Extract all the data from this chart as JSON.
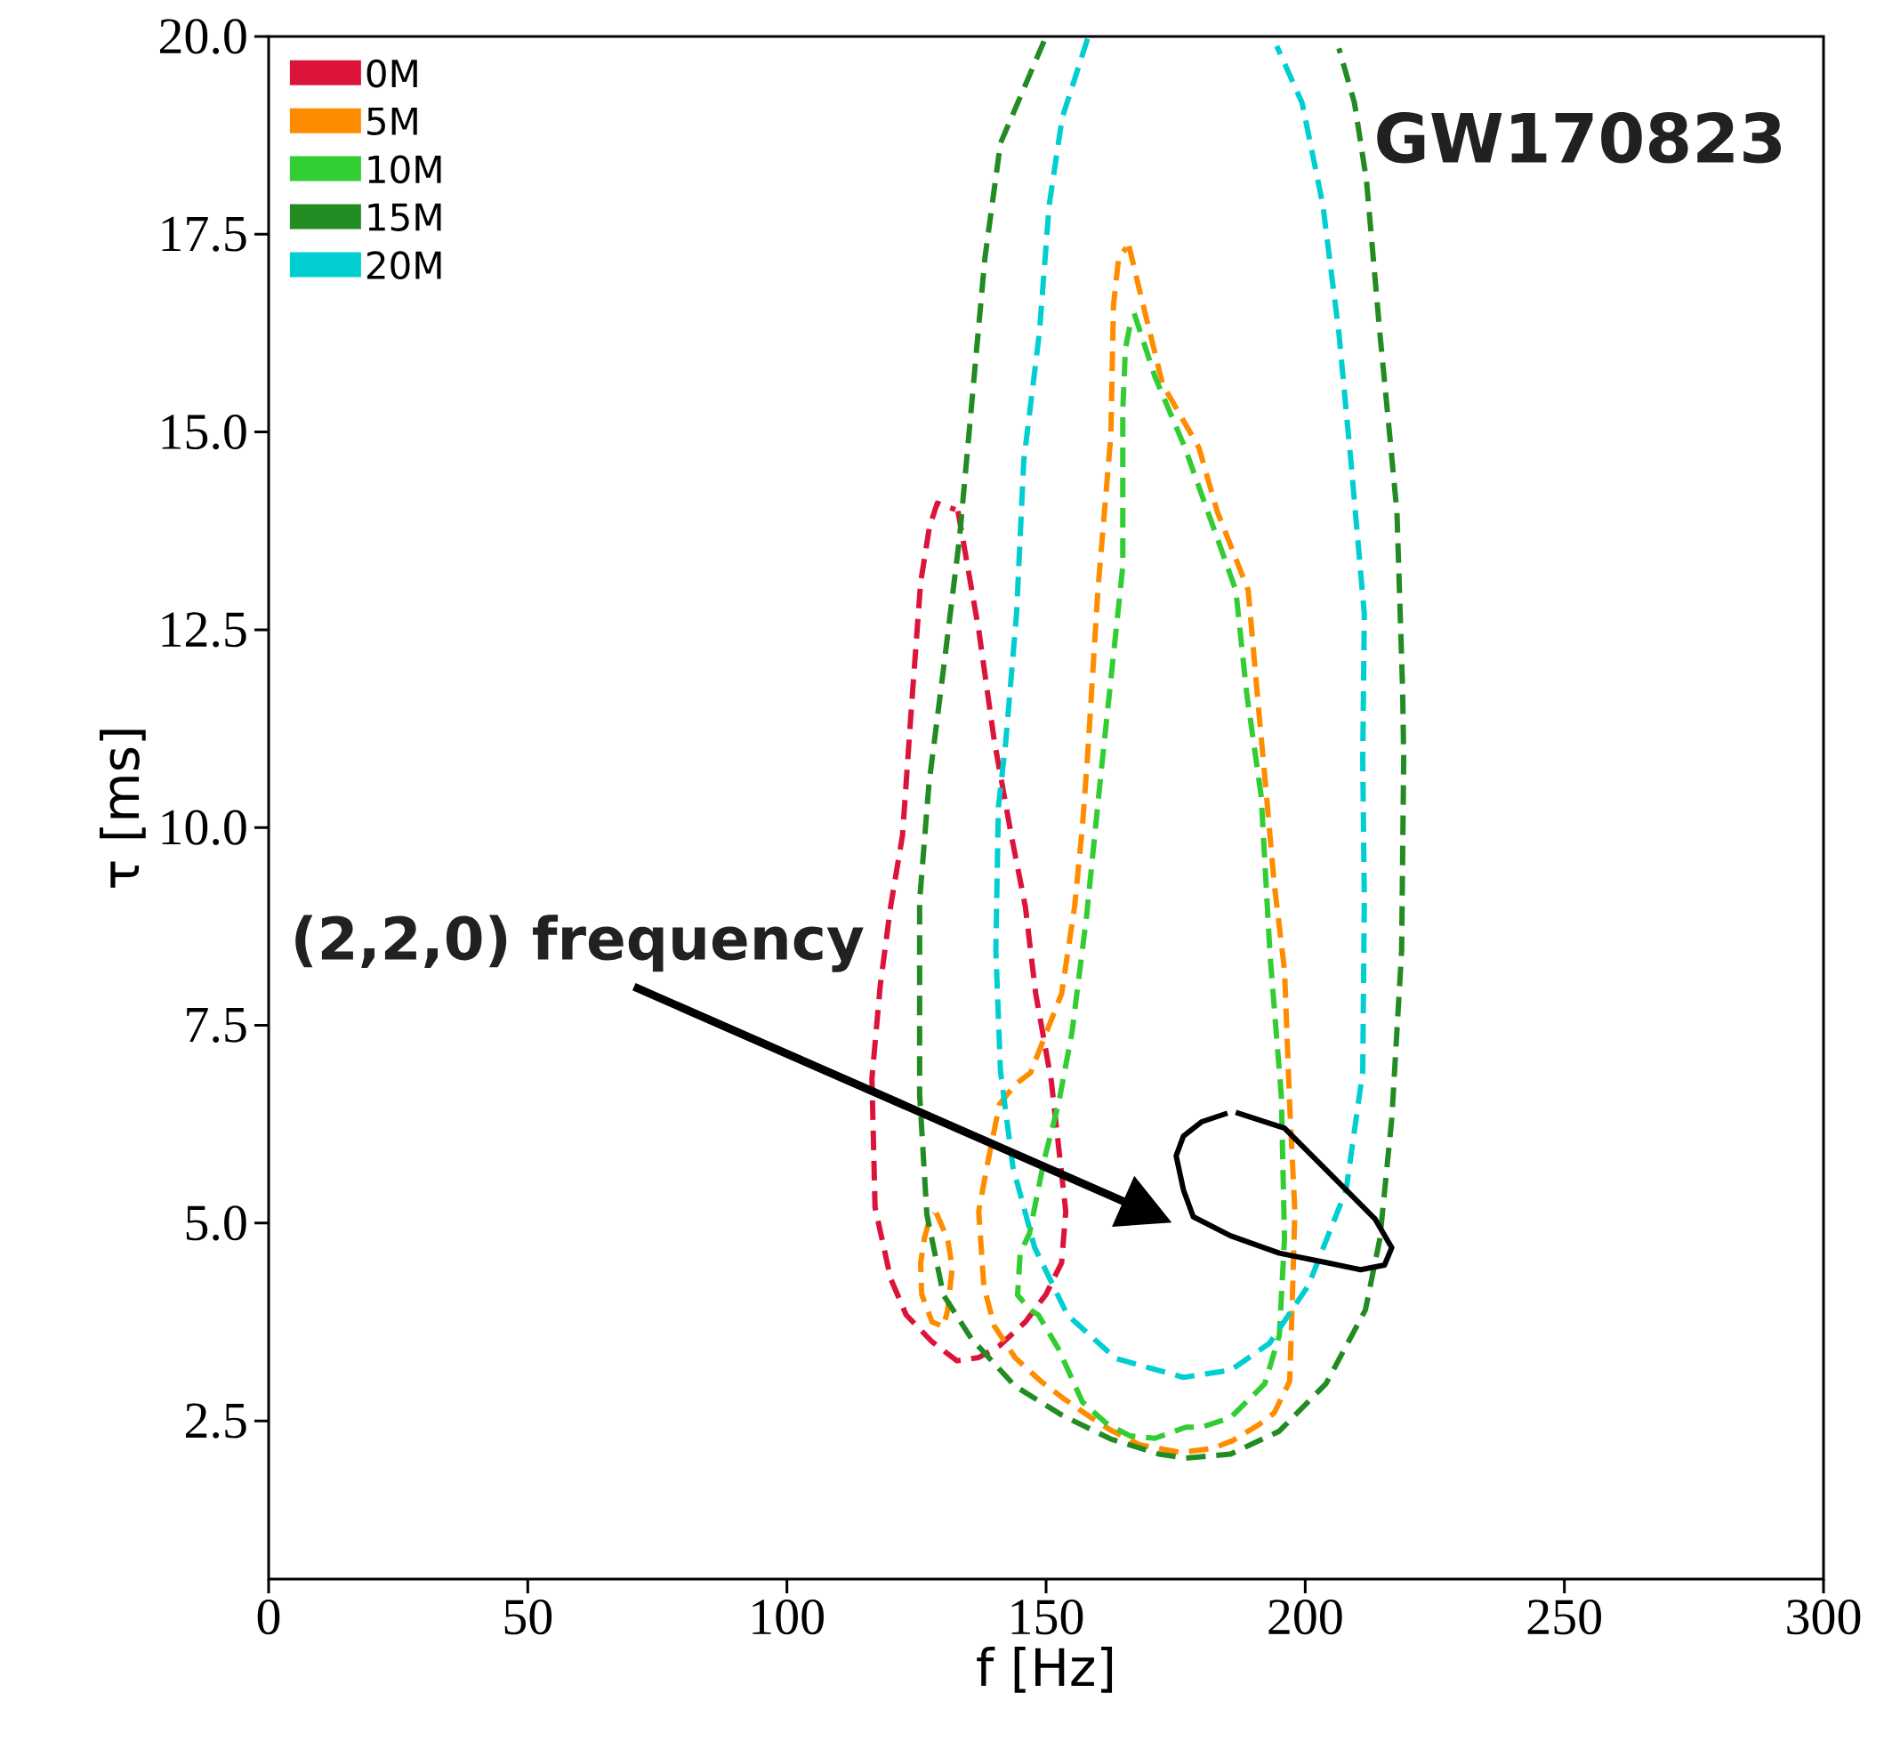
{
  "chart_data": {
    "type": "line",
    "xlabel": "f [Hz]",
    "ylabel": "τ [ms]",
    "xlim": [
      0,
      300
    ],
    "ylim": [
      0.5,
      20
    ],
    "xticks": [
      0,
      50,
      100,
      150,
      200,
      250,
      300
    ],
    "yticks": [
      2.5,
      {
        "value": 5,
        "label": "5.0"
      },
      7.5,
      {
        "value": 10,
        "label": "10.0"
      },
      12.5,
      {
        "value": 15,
        "label": "15.0"
      },
      17.5,
      {
        "value": 20,
        "label": "20.0"
      }
    ],
    "legend": "top left",
    "marker": "none",
    "annotations": [
      "GW170823",
      "(2,2,0) frequency"
    ],
    "series": [
      {
        "name": "0M",
        "color": "#dc143c",
        "line_style": "dashed",
        "x": [
          133,
          137,
          140,
          143.3,
          146,
          148,
          151,
          153.8,
          153,
          150,
          146,
          141,
          137,
          132.8,
          128,
          123,
          120,
          117,
          116.4,
          118,
          120,
          122.3,
          124,
          125.8,
          127.5,
          129,
          131,
          132.5
        ],
        "values": [
          14.0,
          12.5,
          11.1,
          9.9,
          9.0,
          7.9,
          6.8,
          5.15,
          4.5,
          4.1,
          3.75,
          3.45,
          3.3,
          3.26,
          3.5,
          3.84,
          4.3,
          5.2,
          6.83,
          8.0,
          9.0,
          9.9,
          11.5,
          13.1,
          13.8,
          14.1,
          14.05,
          14.02
        ]
      },
      {
        "name": "5M",
        "color": "#ff8c00",
        "line_style": "dashed",
        "x": [
          166,
          168,
          172.5,
          179.5,
          183,
          189,
          191,
          192.4,
          194,
          196,
          197,
          198,
          197.5,
          197,
          194,
          191,
          186,
          182,
          176,
          168,
          162,
          158.5,
          153,
          149,
          144,
          140,
          138,
          137,
          138.7,
          141,
          144,
          147,
          150,
          153,
          155.5,
          157,
          158,
          160,
          162.5,
          163,
          164,
          165.5
        ],
        "values": [
          17.35,
          16.8,
          15.6,
          14.8,
          14.0,
          13.0,
          11.5,
          10.5,
          9.3,
          8.2,
          6.5,
          5.15,
          4.0,
          3.0,
          2.6,
          2.45,
          2.25,
          2.15,
          2.1,
          2.2,
          2.4,
          2.55,
          2.8,
          3.0,
          3.3,
          3.7,
          4.2,
          5.15,
          5.75,
          6.5,
          6.75,
          6.9,
          7.4,
          7.9,
          9.0,
          10.0,
          10.9,
          13.0,
          14.96,
          16.6,
          17.2,
          17.33
        ]
      },
      {
        "color": "#ff8c00",
        "line_style": "dashed",
        "x": [
          128.8,
          131,
          131.9,
          131,
          130.2,
          128,
          126,
          125.8,
          126.5,
          127.5,
          128.5
        ],
        "values": [
          5.13,
          4.8,
          4.44,
          3.9,
          3.69,
          3.75,
          4.1,
          4.5,
          4.8,
          5.05,
          5.12
        ]
      },
      {
        "name": "10M",
        "color": "#32cd32",
        "line_style": "dashed",
        "x": [
          167,
          171,
          176.8,
          182.8,
          186.6,
          188.7,
          191.5,
          193.2,
          195.4,
          196,
          195,
          192.2,
          185.6,
          180,
          177,
          171,
          166.2,
          161.6,
          157,
          152.4,
          148.5,
          147,
          144.5,
          145,
          146.8,
          149.6,
          152.4,
          155,
          157.8,
          160.6,
          164.8,
          164.8,
          165.3,
          166.5
        ],
        "values": [
          16.5,
          15.7,
          14.8,
          13.7,
          13.0,
          11.7,
          10.4,
          8.4,
          6.6,
          4.8,
          3.58,
          2.97,
          2.54,
          2.42,
          2.42,
          2.28,
          2.31,
          2.47,
          2.74,
          3.41,
          3.84,
          3.9,
          4.09,
          4.62,
          4.87,
          5.79,
          6.51,
          7.41,
          8.87,
          10.69,
          13.3,
          15.28,
          16.05,
          16.45
        ]
      },
      {
        "name": "15M",
        "color": "#228b22",
        "line_style": "dashed",
        "x": [
          149.6,
          141.2,
          138.2,
          135.1,
          133.3,
          130.2,
          127.4,
          125.6,
          125.6,
          127,
          130.2,
          135.6,
          144,
          153.1,
          162.5,
          171.8,
          177,
          185.6,
          195,
          204,
          211.6,
          214.4,
          216.7,
          218.6,
          219,
          218.8,
          217.7,
          216.3,
          214.4,
          211.8,
          209.5,
          206.5
        ],
        "values": [
          19.94,
          18.65,
          17.2,
          14.96,
          13.66,
          12.0,
          10.55,
          9.07,
          6.63,
          5.11,
          4.09,
          3.54,
          2.94,
          2.57,
          2.27,
          2.08,
          2.03,
          2.08,
          2.37,
          2.97,
          3.9,
          4.8,
          6.32,
          8.44,
          10.87,
          11.73,
          13.98,
          14.96,
          16.25,
          18.19,
          19.16,
          19.85
        ]
      },
      {
        "name": "20M",
        "color": "#00ced1",
        "line_style": "dashed",
        "x": [
          158,
          153.1,
          150.6,
          148.7,
          145.7,
          144.3,
          142.2,
          140.8,
          140.3,
          141.2,
          143.6,
          147.8,
          154.1,
          163.4,
          176.5,
          185.6,
          193.1,
          200.6,
          207.9,
          211.1,
          211.4,
          211.1,
          211.4,
          208.8,
          206.5,
          203.4,
          199.4,
          194.5
        ],
        "values": [
          19.97,
          18.97,
          17.87,
          16.25,
          14.64,
          12.7,
          11.07,
          10.26,
          8.45,
          6.92,
          5.71,
          4.69,
          3.84,
          3.29,
          3.05,
          3.14,
          3.48,
          4.21,
          5.42,
          6.92,
          9.07,
          10.87,
          12.7,
          14.64,
          16.25,
          17.87,
          19.16,
          19.88
        ]
      },
      {
        "color": "#000000",
        "line_style": "solid",
        "x": [
          186.6,
          196,
          204.1,
          213.5,
          216.7,
          215.3,
          210.7,
          204.1,
          195,
          185.6,
          178.4,
          176.5,
          175.1,
          176.5,
          180,
          185
        ],
        "values": [
          6.4,
          6.2,
          5.67,
          5.05,
          4.69,
          4.47,
          4.41,
          4.5,
          4.62,
          4.84,
          5.08,
          5.42,
          5.85,
          6.1,
          6.28,
          6.39
        ]
      }
    ]
  }
}
